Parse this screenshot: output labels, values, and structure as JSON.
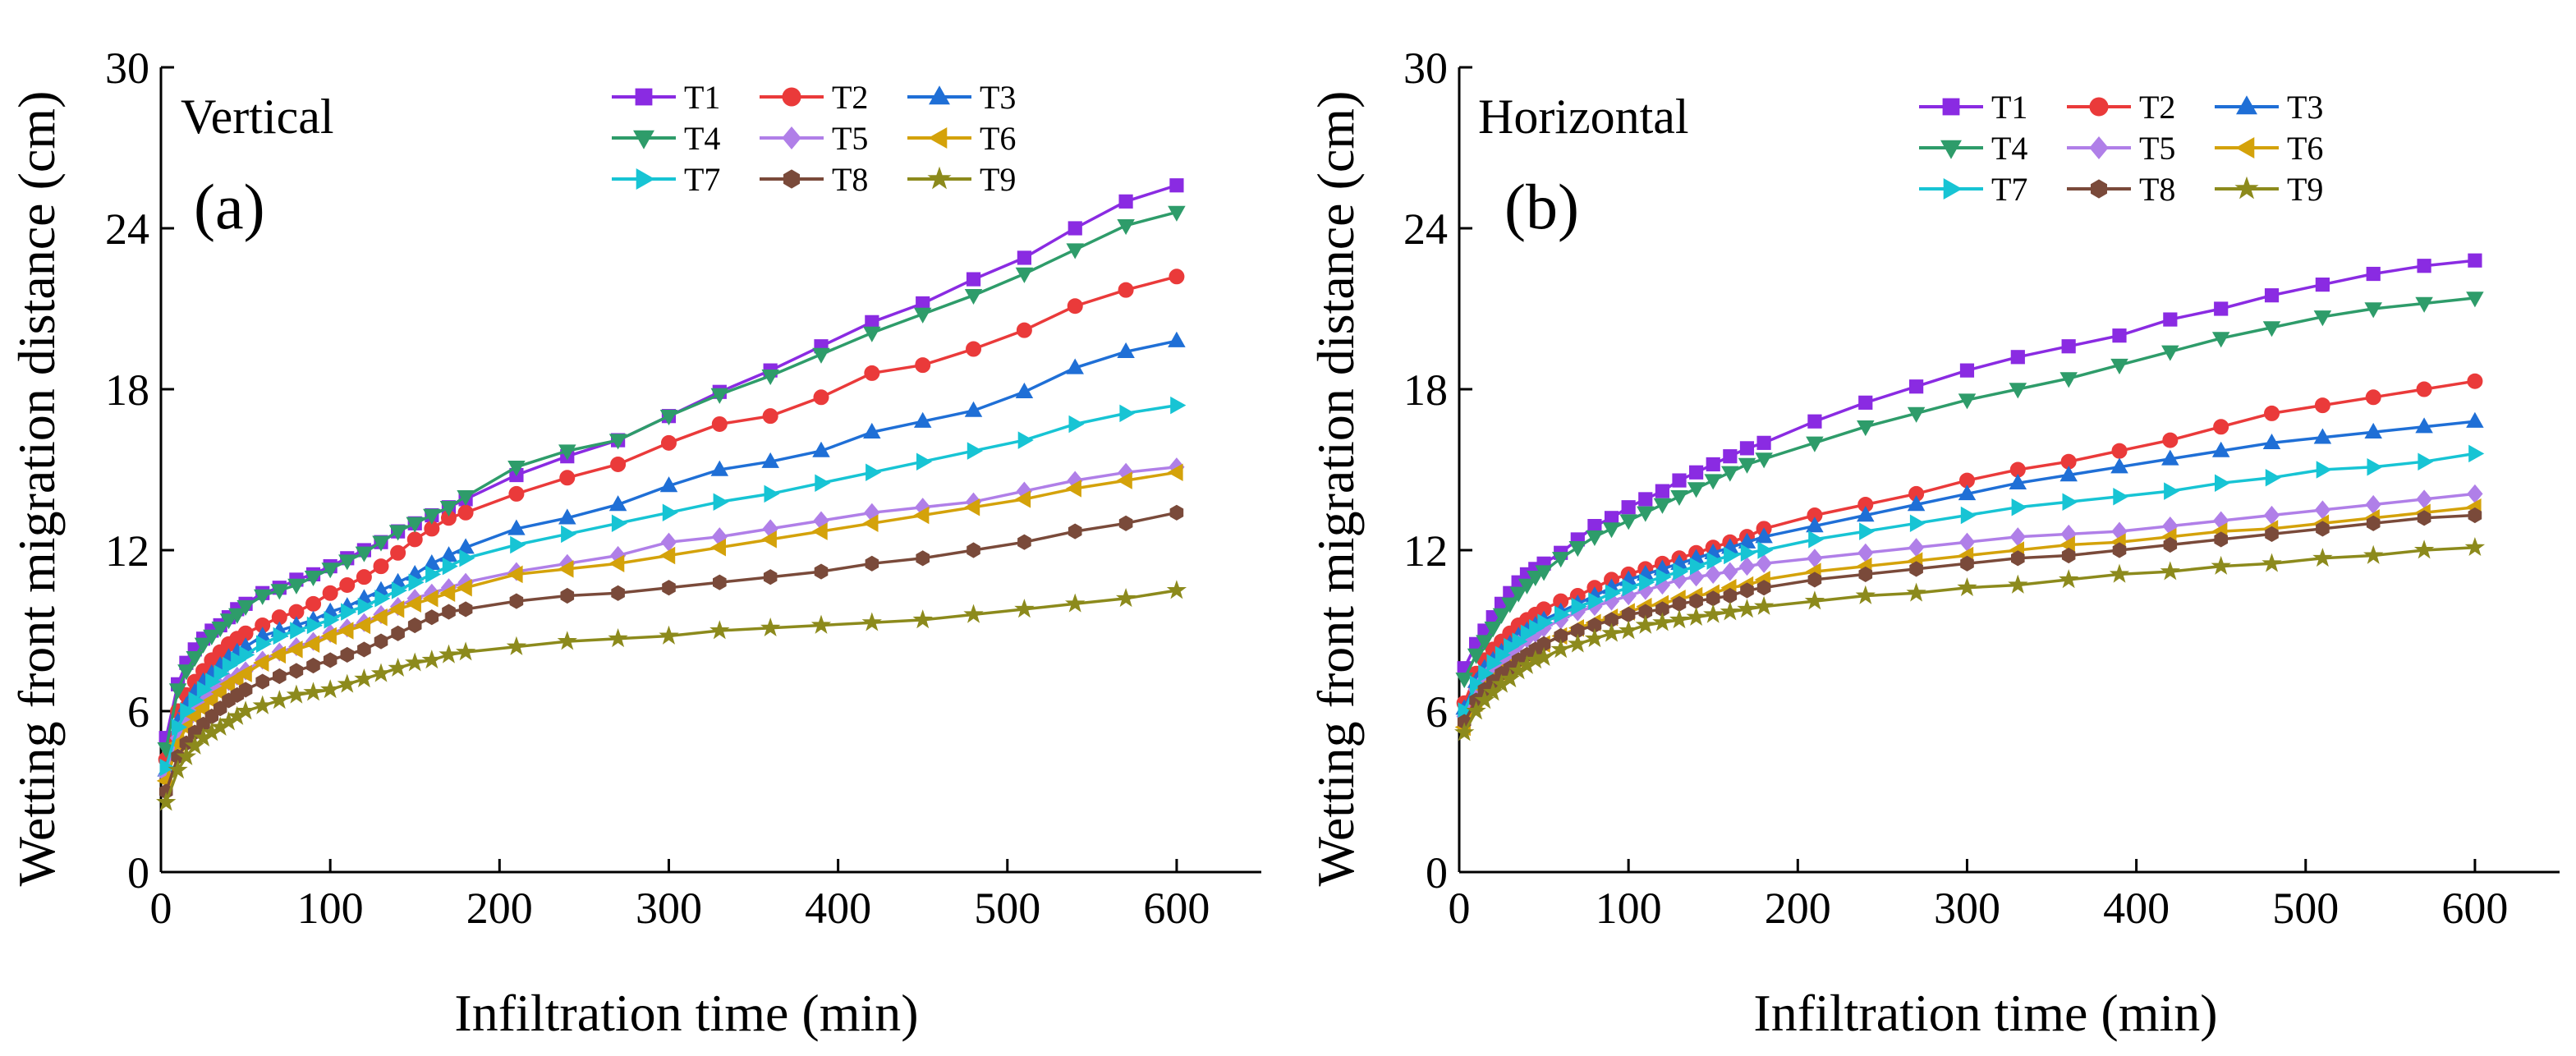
{
  "chart_data": [
    {
      "type": "line",
      "panel_label": "(a)",
      "orientation_label": "Vertical",
      "title": "",
      "xlabel": "Infiltration time (min)",
      "ylabel": "Wetting front migration distance (cm)",
      "xlim": [
        0,
        650
      ],
      "ylim": [
        0,
        30
      ],
      "xticks": [
        0,
        100,
        200,
        300,
        400,
        500,
        600
      ],
      "yticks": [
        0,
        6,
        12,
        18,
        24,
        30
      ],
      "grid": false,
      "legend_position": "top-right",
      "x": [
        3,
        10,
        15,
        20,
        25,
        30,
        35,
        40,
        45,
        50,
        60,
        70,
        80,
        90,
        100,
        110,
        120,
        130,
        140,
        150,
        160,
        170,
        180,
        210,
        240,
        270,
        300,
        330,
        360,
        390,
        420,
        450,
        480,
        510,
        540,
        570,
        600
      ],
      "series": [
        {
          "name": "T1",
          "color": "#8a2be2",
          "marker": "square",
          "values": [
            5.0,
            7.0,
            7.8,
            8.3,
            8.7,
            9.0,
            9.2,
            9.5,
            9.8,
            10.0,
            10.4,
            10.6,
            10.9,
            11.1,
            11.4,
            11.7,
            12.0,
            12.3,
            12.7,
            13.0,
            13.3,
            13.6,
            13.9,
            14.8,
            15.5,
            16.1,
            17.0,
            17.9,
            18.7,
            19.6,
            20.5,
            21.2,
            22.1,
            22.9,
            24.0,
            25.0,
            25.6
          ]
        },
        {
          "name": "T2",
          "color": "#ea3a3a",
          "marker": "circle",
          "values": [
            4.2,
            6.0,
            6.6,
            7.1,
            7.5,
            7.9,
            8.2,
            8.5,
            8.7,
            8.9,
            9.2,
            9.5,
            9.7,
            10.0,
            10.4,
            10.7,
            11.0,
            11.4,
            11.9,
            12.4,
            12.8,
            13.2,
            13.4,
            14.1,
            14.7,
            15.2,
            16.0,
            16.7,
            17.0,
            17.7,
            18.6,
            18.9,
            19.5,
            20.2,
            21.1,
            21.7,
            22.2
          ]
        },
        {
          "name": "T3",
          "color": "#1f6fd6",
          "marker": "triangle-up",
          "values": [
            3.8,
            5.6,
            6.2,
            6.7,
            7.1,
            7.4,
            7.7,
            8.0,
            8.2,
            8.4,
            8.8,
            9.0,
            9.2,
            9.4,
            9.7,
            9.9,
            10.2,
            10.5,
            10.8,
            11.1,
            11.5,
            11.8,
            12.1,
            12.8,
            13.2,
            13.7,
            14.4,
            15.0,
            15.3,
            15.7,
            16.4,
            16.8,
            17.2,
            17.9,
            18.8,
            19.4,
            19.8
          ]
        },
        {
          "name": "T4",
          "color": "#2e9c6a",
          "marker": "triangle-down",
          "values": [
            4.6,
            6.8,
            7.5,
            8.0,
            8.5,
            8.8,
            9.1,
            9.4,
            9.6,
            9.9,
            10.3,
            10.5,
            10.7,
            11.0,
            11.3,
            11.6,
            11.9,
            12.3,
            12.7,
            13.0,
            13.3,
            13.6,
            14.0,
            15.1,
            15.7,
            16.1,
            17.0,
            17.8,
            18.5,
            19.3,
            20.1,
            20.8,
            21.5,
            22.3,
            23.2,
            24.1,
            24.6
          ]
        },
        {
          "name": "T5",
          "color": "#b07fe8",
          "marker": "diamond",
          "values": [
            3.6,
            5.0,
            5.6,
            6.0,
            6.3,
            6.6,
            6.9,
            7.1,
            7.3,
            7.5,
            7.9,
            8.2,
            8.4,
            8.6,
            8.9,
            9.1,
            9.3,
            9.6,
            9.9,
            10.2,
            10.4,
            10.6,
            10.8,
            11.2,
            11.5,
            11.8,
            12.3,
            12.5,
            12.8,
            13.1,
            13.4,
            13.6,
            13.8,
            14.2,
            14.6,
            14.9,
            15.1
          ]
        },
        {
          "name": "T6",
          "color": "#d4a20a",
          "marker": "triangle-left",
          "values": [
            3.4,
            4.8,
            5.4,
            5.8,
            6.1,
            6.4,
            6.7,
            7.0,
            7.2,
            7.4,
            7.8,
            8.1,
            8.3,
            8.5,
            8.8,
            9.0,
            9.2,
            9.5,
            9.8,
            10.0,
            10.2,
            10.4,
            10.6,
            11.1,
            11.3,
            11.5,
            11.8,
            12.1,
            12.4,
            12.7,
            13.0,
            13.3,
            13.6,
            13.9,
            14.3,
            14.6,
            14.9
          ]
        },
        {
          "name": "T7",
          "color": "#17c4d4",
          "marker": "triangle-right",
          "values": [
            3.9,
            5.4,
            6.0,
            6.4,
            6.8,
            7.1,
            7.4,
            7.7,
            7.9,
            8.1,
            8.5,
            8.8,
            9.0,
            9.2,
            9.4,
            9.7,
            9.9,
            10.2,
            10.5,
            10.8,
            11.1,
            11.4,
            11.7,
            12.2,
            12.6,
            13.0,
            13.4,
            13.8,
            14.1,
            14.5,
            14.9,
            15.3,
            15.7,
            16.1,
            16.7,
            17.1,
            17.4
          ]
        },
        {
          "name": "T8",
          "color": "#7a4a3a",
          "marker": "hexagon",
          "values": [
            3.0,
            4.3,
            4.8,
            5.2,
            5.5,
            5.8,
            6.1,
            6.4,
            6.6,
            6.8,
            7.1,
            7.3,
            7.5,
            7.7,
            7.9,
            8.1,
            8.3,
            8.6,
            8.9,
            9.2,
            9.5,
            9.7,
            9.8,
            10.1,
            10.3,
            10.4,
            10.6,
            10.8,
            11.0,
            11.2,
            11.5,
            11.7,
            12.0,
            12.3,
            12.7,
            13.0,
            13.4
          ]
        },
        {
          "name": "T9",
          "color": "#8c8a1c",
          "marker": "star",
          "values": [
            2.6,
            3.8,
            4.3,
            4.7,
            5.0,
            5.2,
            5.4,
            5.6,
            5.8,
            6.0,
            6.2,
            6.4,
            6.6,
            6.7,
            6.8,
            7.0,
            7.2,
            7.4,
            7.6,
            7.8,
            7.9,
            8.1,
            8.2,
            8.4,
            8.6,
            8.7,
            8.8,
            9.0,
            9.1,
            9.2,
            9.3,
            9.4,
            9.6,
            9.8,
            10.0,
            10.2,
            10.5
          ]
        }
      ]
    },
    {
      "type": "line",
      "panel_label": "(b)",
      "orientation_label": "Horizontal",
      "title": "",
      "xlabel": "Infiltration time (min)",
      "ylabel": "Wetting front migration distance (cm)",
      "xlim": [
        0,
        650
      ],
      "ylim": [
        0,
        30
      ],
      "xticks": [
        0,
        100,
        200,
        300,
        400,
        500,
        600
      ],
      "yticks": [
        0,
        6,
        12,
        18,
        24,
        30
      ],
      "grid": false,
      "legend_position": "top-right",
      "x": [
        3,
        10,
        15,
        20,
        25,
        30,
        35,
        40,
        45,
        50,
        60,
        70,
        80,
        90,
        100,
        110,
        120,
        130,
        140,
        150,
        160,
        170,
        180,
        210,
        240,
        270,
        300,
        330,
        360,
        390,
        420,
        450,
        480,
        510,
        540,
        570,
        600
      ],
      "series": [
        {
          "name": "T1",
          "color": "#8a2be2",
          "marker": "square",
          "values": [
            7.6,
            8.5,
            9.0,
            9.5,
            10.0,
            10.4,
            10.8,
            11.1,
            11.3,
            11.5,
            11.9,
            12.4,
            12.9,
            13.2,
            13.6,
            13.9,
            14.2,
            14.6,
            14.9,
            15.2,
            15.5,
            15.8,
            16.0,
            16.8,
            17.5,
            18.1,
            18.7,
            19.2,
            19.6,
            20.0,
            20.6,
            21.0,
            21.5,
            21.9,
            22.3,
            22.6,
            22.8
          ]
        },
        {
          "name": "T2",
          "color": "#ea3a3a",
          "marker": "circle",
          "values": [
            6.3,
            7.4,
            7.9,
            8.3,
            8.6,
            8.9,
            9.2,
            9.4,
            9.6,
            9.8,
            10.1,
            10.3,
            10.6,
            10.9,
            11.1,
            11.3,
            11.5,
            11.7,
            11.9,
            12.1,
            12.3,
            12.5,
            12.8,
            13.3,
            13.7,
            14.1,
            14.6,
            15.0,
            15.3,
            15.7,
            16.1,
            16.6,
            17.1,
            17.4,
            17.7,
            18.0,
            18.3
          ]
        },
        {
          "name": "T3",
          "color": "#1f6fd6",
          "marker": "triangle-up",
          "values": [
            6.1,
            7.1,
            7.6,
            7.9,
            8.2,
            8.5,
            8.8,
            9.0,
            9.2,
            9.4,
            9.7,
            10.0,
            10.3,
            10.6,
            10.9,
            11.1,
            11.3,
            11.5,
            11.7,
            11.9,
            12.1,
            12.3,
            12.5,
            12.9,
            13.3,
            13.7,
            14.1,
            14.5,
            14.8,
            15.1,
            15.4,
            15.7,
            16.0,
            16.2,
            16.4,
            16.6,
            16.8
          ]
        },
        {
          "name": "T4",
          "color": "#2e9c6a",
          "marker": "triangle-down",
          "values": [
            7.2,
            8.1,
            8.6,
            9.1,
            9.6,
            10.0,
            10.4,
            10.7,
            11.0,
            11.2,
            11.7,
            12.1,
            12.5,
            12.8,
            13.1,
            13.4,
            13.7,
            14.0,
            14.3,
            14.6,
            14.9,
            15.2,
            15.4,
            16.0,
            16.6,
            17.1,
            17.6,
            18.0,
            18.4,
            18.9,
            19.4,
            19.9,
            20.3,
            20.7,
            21.0,
            21.2,
            21.4
          ]
        },
        {
          "name": "T5",
          "color": "#b07fe8",
          "marker": "diamond",
          "values": [
            5.8,
            6.8,
            7.2,
            7.6,
            7.9,
            8.2,
            8.5,
            8.7,
            8.9,
            9.1,
            9.4,
            9.7,
            9.9,
            10.1,
            10.3,
            10.5,
            10.7,
            10.9,
            11.0,
            11.1,
            11.2,
            11.4,
            11.5,
            11.7,
            11.9,
            12.1,
            12.3,
            12.5,
            12.6,
            12.7,
            12.9,
            13.1,
            13.3,
            13.5,
            13.7,
            13.9,
            14.1
          ]
        },
        {
          "name": "T6",
          "color": "#d4a20a",
          "marker": "triangle-left",
          "values": [
            5.4,
            6.3,
            6.8,
            7.1,
            7.4,
            7.7,
            7.9,
            8.1,
            8.3,
            8.5,
            8.8,
            9.1,
            9.3,
            9.5,
            9.7,
            9.9,
            10.0,
            10.2,
            10.3,
            10.4,
            10.6,
            10.7,
            10.9,
            11.2,
            11.4,
            11.6,
            11.8,
            12.0,
            12.2,
            12.3,
            12.5,
            12.7,
            12.8,
            13.0,
            13.2,
            13.4,
            13.6
          ]
        },
        {
          "name": "T7",
          "color": "#17c4d4",
          "marker": "triangle-right",
          "values": [
            6.0,
            7.0,
            7.4,
            7.8,
            8.1,
            8.4,
            8.6,
            8.9,
            9.1,
            9.3,
            9.6,
            9.9,
            10.1,
            10.4,
            10.6,
            10.8,
            11.0,
            11.2,
            11.4,
            11.6,
            11.8,
            11.9,
            12.0,
            12.4,
            12.7,
            13.0,
            13.3,
            13.6,
            13.8,
            14.0,
            14.2,
            14.5,
            14.7,
            15.0,
            15.1,
            15.3,
            15.6
          ]
        },
        {
          "name": "T8",
          "color": "#7a4a3a",
          "marker": "hexagon",
          "values": [
            5.6,
            6.4,
            6.8,
            7.1,
            7.4,
            7.6,
            7.9,
            8.1,
            8.3,
            8.5,
            8.8,
            9.0,
            9.2,
            9.4,
            9.6,
            9.7,
            9.8,
            10.0,
            10.1,
            10.2,
            10.3,
            10.5,
            10.6,
            10.9,
            11.1,
            11.3,
            11.5,
            11.7,
            11.8,
            12.0,
            12.2,
            12.4,
            12.6,
            12.8,
            13.0,
            13.2,
            13.3
          ]
        },
        {
          "name": "T9",
          "color": "#8c8a1c",
          "marker": "star",
          "values": [
            5.2,
            6.0,
            6.4,
            6.7,
            7.0,
            7.2,
            7.5,
            7.7,
            7.9,
            8.0,
            8.3,
            8.5,
            8.7,
            8.9,
            9.0,
            9.2,
            9.3,
            9.4,
            9.5,
            9.6,
            9.7,
            9.8,
            9.9,
            10.1,
            10.3,
            10.4,
            10.6,
            10.7,
            10.9,
            11.1,
            11.2,
            11.4,
            11.5,
            11.7,
            11.8,
            12.0,
            12.1
          ]
        }
      ]
    }
  ]
}
